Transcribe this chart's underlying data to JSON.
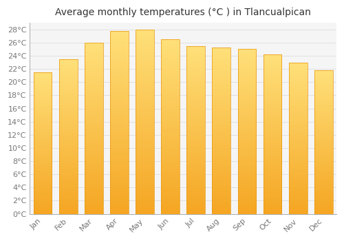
{
  "title": "Average monthly temperatures (°C ) in Tlancualpican",
  "months": [
    "Jan",
    "Feb",
    "Mar",
    "Apr",
    "May",
    "Jun",
    "Jul",
    "Aug",
    "Sep",
    "Oct",
    "Nov",
    "Dec"
  ],
  "values": [
    21.5,
    23.5,
    26.0,
    27.8,
    28.0,
    26.5,
    25.5,
    25.3,
    25.0,
    24.2,
    23.0,
    21.8
  ],
  "bar_color_bottom": "#F5A623",
  "bar_color_top": "#FFE07A",
  "ylim": [
    0,
    29
  ],
  "ytick_step": 2,
  "background_color": "#ffffff",
  "plot_bg_color": "#f5f5f5",
  "grid_color": "#e0e0e0",
  "title_fontsize": 10,
  "tick_fontsize": 8,
  "font_family": "DejaVu Sans"
}
